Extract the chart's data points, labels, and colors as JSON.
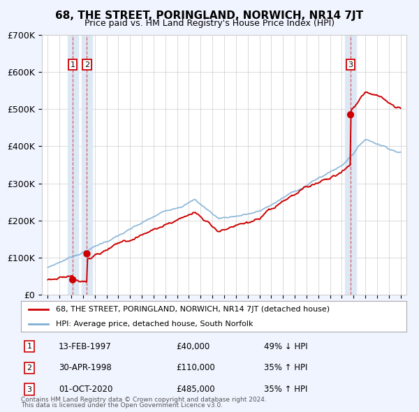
{
  "title": "68, THE STREET, PORINGLAND, NORWICH, NR14 7JT",
  "subtitle": "Price paid vs. HM Land Registry's House Price Index (HPI)",
  "legend_line1": "68, THE STREET, PORINGLAND, NORWICH, NR14 7JT (detached house)",
  "legend_line2": "HPI: Average price, detached house, South Norfolk",
  "footer_line1": "Contains HM Land Registry data © Crown copyright and database right 2024.",
  "footer_line2": "This data is licensed under the Open Government Licence v3.0.",
  "sales": [
    {
      "num": 1,
      "date": "13-FEB-1997",
      "price": 40000,
      "pct": "49%",
      "dir": "↓",
      "year": 1997.12
    },
    {
      "num": 2,
      "date": "30-APR-1998",
      "price": 110000,
      "pct": "35%",
      "dir": "↑",
      "year": 1998.33
    },
    {
      "num": 3,
      "date": "01-OCT-2020",
      "price": 485000,
      "pct": "35%",
      "dir": "↑",
      "year": 2020.75
    }
  ],
  "ylim": [
    0,
    700000
  ],
  "yticks": [
    0,
    100000,
    200000,
    300000,
    400000,
    500000,
    600000,
    700000
  ],
  "ytick_labels": [
    "£0",
    "£100K",
    "£200K",
    "£300K",
    "£400K",
    "£500K",
    "£600K",
    "£700K"
  ],
  "xlim": [
    1994.5,
    2025.5
  ],
  "xticks": [
    1995,
    1996,
    1997,
    1998,
    1999,
    2000,
    2001,
    2002,
    2003,
    2004,
    2005,
    2006,
    2007,
    2008,
    2009,
    2010,
    2011,
    2012,
    2013,
    2014,
    2015,
    2016,
    2017,
    2018,
    2019,
    2020,
    2021,
    2022,
    2023,
    2024,
    2025
  ],
  "bg_color": "#f0f4ff",
  "plot_bg": "#ffffff",
  "red_color": "#cc0000",
  "blue_color": "#7eaed4",
  "shading_color": "#dde8f5"
}
